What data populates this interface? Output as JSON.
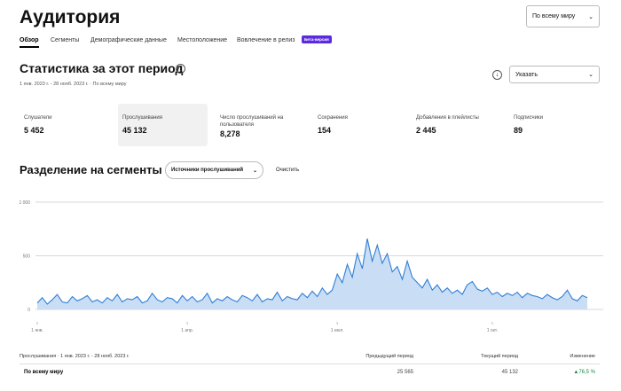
{
  "header": {
    "title": "Аудитория",
    "region_select": "По всему миру"
  },
  "tabs": [
    "Обзор",
    "Сегменты",
    "Демографические данные",
    "Местоположение",
    "Вовлечение в релиз"
  ],
  "beta_badge": "Бета-версия",
  "period": {
    "title": "Статистика за этот период",
    "subtitle": "1 янв. 2023 г. - 28 нояб. 2023 г. · По всему миру",
    "select": "Указать"
  },
  "stats": [
    {
      "label": "Слушатели",
      "value": "5 452"
    },
    {
      "label": "Прослушивания",
      "value": "45 132"
    },
    {
      "label": "Число прослушиваний на пользователя",
      "value": "8,278"
    },
    {
      "label": "Сохранения",
      "value": "154"
    },
    {
      "label": "Добавления в плейлисты",
      "value": "2 445"
    },
    {
      "label": "Подписчики",
      "value": "89"
    }
  ],
  "segments": {
    "title": "Разделение на сегменты",
    "filter": "Источники прослушиваний",
    "clear": "Очистить"
  },
  "chart": {
    "type": "area",
    "color": "#2f7fd6",
    "fill": "#c9ddf5",
    "xlim": [
      0,
      110
    ],
    "xticks": [
      {
        "value": 0,
        "label": "1 янв."
      },
      {
        "value": 30,
        "label": "1 апр."
      },
      {
        "value": 60,
        "label": "1 июл."
      },
      {
        "value": 91,
        "label": "1 окт."
      }
    ],
    "ylim": [
      0,
      1000
    ],
    "yticks": [
      0,
      500,
      {
        "value": 1000,
        "label": "1 000"
      }
    ],
    "grid": true,
    "values": [
      60,
      110,
      50,
      90,
      140,
      70,
      60,
      120,
      80,
      100,
      130,
      70,
      90,
      60,
      110,
      80,
      140,
      70,
      100,
      90,
      120,
      60,
      80,
      150,
      90,
      70,
      110,
      100,
      60,
      130,
      80,
      120,
      70,
      90,
      150,
      60,
      100,
      80,
      120,
      90,
      70,
      130,
      110,
      80,
      140,
      70,
      100,
      90,
      160,
      80,
      120,
      100,
      90,
      150,
      110,
      170,
      120,
      200,
      140,
      180,
      330,
      250,
      420,
      300,
      520,
      380,
      660,
      450,
      600,
      430,
      520,
      350,
      400,
      280,
      450,
      300,
      250,
      200,
      280,
      180,
      230,
      160,
      200,
      150,
      180,
      140,
      230,
      260,
      190,
      170,
      200,
      140,
      160,
      120,
      150,
      130,
      160,
      110,
      150,
      130,
      120,
      100,
      140,
      110,
      90,
      120,
      180,
      100,
      80,
      130,
      110
    ]
  },
  "table": {
    "columns": [
      "Прослушивания · 1 янв. 2023 г. - 28 нояб. 2023 г.",
      "Предыдущий период",
      "Текущий период",
      "Изменение"
    ],
    "rows": [
      [
        "По всему миру",
        "25 565",
        "45 132",
        "▲76,5 %"
      ]
    ]
  }
}
